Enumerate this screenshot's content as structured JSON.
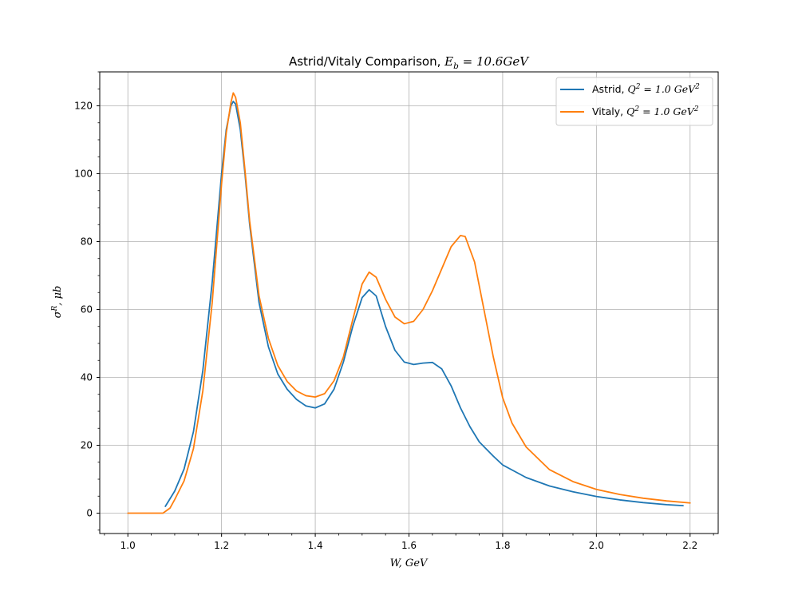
{
  "chart_data": {
    "type": "line",
    "title_prefix": "Astrid/Vitaly Comparison, ",
    "title_math_base": "E",
    "title_math_sub": "b",
    "title_math_rest": " = 10.6GeV",
    "xlabel": "W, GeV",
    "ylabel_base": "σ",
    "ylabel_sup": "R",
    "ylabel_rest": ", μb",
    "xlim": [
      0.94,
      2.26
    ],
    "ylim": [
      -6,
      130
    ],
    "x_ticks": [
      1.0,
      1.2,
      1.4,
      1.6,
      1.8,
      2.0,
      2.2
    ],
    "x_tick_labels": [
      "1.0",
      "1.2",
      "1.4",
      "1.6",
      "1.8",
      "2.0",
      "2.2"
    ],
    "y_ticks": [
      0,
      20,
      40,
      60,
      80,
      100,
      120
    ],
    "y_tick_labels": [
      "0",
      "20",
      "40",
      "60",
      "80",
      "100",
      "120"
    ],
    "grid": true,
    "legend_position": "top-right",
    "series": [
      {
        "name_prefix": "Astrid, ",
        "name_math_base": "Q",
        "name_math_sup": "2",
        "name_math_rest": " = 1.0 GeV",
        "name_math_sup2": "2",
        "color": "#1f77b4",
        "points": [
          [
            1.08,
            2.0
          ],
          [
            1.1,
            6.5
          ],
          [
            1.12,
            13.0
          ],
          [
            1.14,
            24.0
          ],
          [
            1.16,
            42.0
          ],
          [
            1.18,
            68.0
          ],
          [
            1.2,
            100.0
          ],
          [
            1.21,
            113.0
          ],
          [
            1.22,
            120.0
          ],
          [
            1.225,
            121.3
          ],
          [
            1.23,
            120.5
          ],
          [
            1.24,
            113.0
          ],
          [
            1.25,
            100.0
          ],
          [
            1.26,
            85.0
          ],
          [
            1.28,
            62.0
          ],
          [
            1.3,
            49.0
          ],
          [
            1.32,
            41.0
          ],
          [
            1.34,
            36.5
          ],
          [
            1.36,
            33.5
          ],
          [
            1.38,
            31.6
          ],
          [
            1.4,
            31.0
          ],
          [
            1.42,
            32.2
          ],
          [
            1.44,
            36.5
          ],
          [
            1.46,
            44.5
          ],
          [
            1.48,
            55.0
          ],
          [
            1.5,
            63.5
          ],
          [
            1.515,
            65.8
          ],
          [
            1.53,
            64.0
          ],
          [
            1.55,
            55.0
          ],
          [
            1.57,
            48.0
          ],
          [
            1.59,
            44.5
          ],
          [
            1.61,
            43.8
          ],
          [
            1.63,
            44.2
          ],
          [
            1.65,
            44.4
          ],
          [
            1.67,
            42.5
          ],
          [
            1.69,
            37.5
          ],
          [
            1.71,
            31.0
          ],
          [
            1.73,
            25.5
          ],
          [
            1.75,
            21.0
          ],
          [
            1.78,
            16.8
          ],
          [
            1.8,
            14.2
          ],
          [
            1.85,
            10.5
          ],
          [
            1.9,
            8.0
          ],
          [
            1.95,
            6.3
          ],
          [
            2.0,
            4.9
          ],
          [
            2.05,
            3.9
          ],
          [
            2.1,
            3.1
          ],
          [
            2.15,
            2.5
          ],
          [
            2.185,
            2.2
          ]
        ]
      },
      {
        "name_prefix": "Vitaly, ",
        "name_math_base": "Q",
        "name_math_sup": "2",
        "name_math_rest": " = 1.0 GeV",
        "name_math_sup2": "2",
        "color": "#ff7f0e",
        "points": [
          [
            1.0,
            0.0
          ],
          [
            1.04,
            0.0
          ],
          [
            1.075,
            0.0
          ],
          [
            1.09,
            1.5
          ],
          [
            1.1,
            4.0
          ],
          [
            1.12,
            9.5
          ],
          [
            1.14,
            19.0
          ],
          [
            1.16,
            36.0
          ],
          [
            1.18,
            62.0
          ],
          [
            1.2,
            97.0
          ],
          [
            1.21,
            112.0
          ],
          [
            1.22,
            121.0
          ],
          [
            1.225,
            123.8
          ],
          [
            1.23,
            122.5
          ],
          [
            1.24,
            115.0
          ],
          [
            1.25,
            101.0
          ],
          [
            1.26,
            86.0
          ],
          [
            1.28,
            64.0
          ],
          [
            1.3,
            51.5
          ],
          [
            1.32,
            43.5
          ],
          [
            1.34,
            38.8
          ],
          [
            1.36,
            36.0
          ],
          [
            1.38,
            34.6
          ],
          [
            1.4,
            34.2
          ],
          [
            1.42,
            35.2
          ],
          [
            1.44,
            39.0
          ],
          [
            1.46,
            46.0
          ],
          [
            1.48,
            57.0
          ],
          [
            1.5,
            67.5
          ],
          [
            1.515,
            71.0
          ],
          [
            1.53,
            69.5
          ],
          [
            1.55,
            63.0
          ],
          [
            1.57,
            57.8
          ],
          [
            1.59,
            55.8
          ],
          [
            1.61,
            56.5
          ],
          [
            1.63,
            60.0
          ],
          [
            1.65,
            65.5
          ],
          [
            1.67,
            72.0
          ],
          [
            1.69,
            78.5
          ],
          [
            1.71,
            81.8
          ],
          [
            1.72,
            81.5
          ],
          [
            1.74,
            74.0
          ],
          [
            1.76,
            60.0
          ],
          [
            1.78,
            46.0
          ],
          [
            1.8,
            34.0
          ],
          [
            1.82,
            26.5
          ],
          [
            1.85,
            19.5
          ],
          [
            1.9,
            12.8
          ],
          [
            1.95,
            9.3
          ],
          [
            2.0,
            7.0
          ],
          [
            2.05,
            5.5
          ],
          [
            2.1,
            4.4
          ],
          [
            2.15,
            3.6
          ],
          [
            2.2,
            3.0
          ]
        ]
      }
    ]
  }
}
